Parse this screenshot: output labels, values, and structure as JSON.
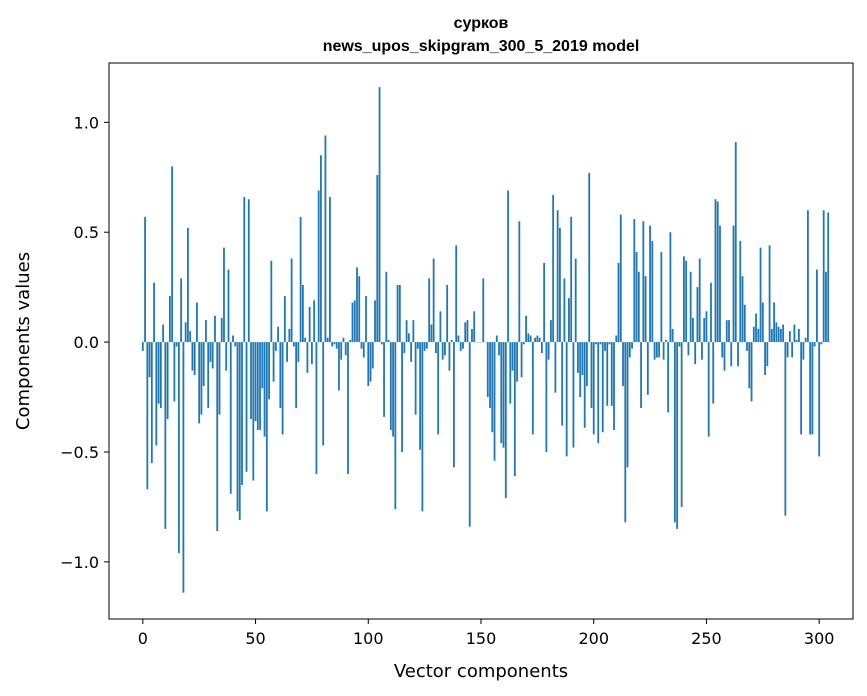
{
  "chart_data": {
    "type": "bar",
    "title": "сурков",
    "subtitle": "news_upos_skipgram_300_5_2019 model",
    "xlabel": "Vector components",
    "ylabel": "Components values",
    "xlim": [
      -15,
      315
    ],
    "ylim": [
      -1.26,
      1.27
    ],
    "xticks": [
      0,
      50,
      100,
      150,
      200,
      250,
      300
    ],
    "xtick_labels": [
      "0",
      "50",
      "100",
      "150",
      "200",
      "250",
      "300"
    ],
    "yticks": [
      -1.0,
      -0.5,
      0.0,
      0.5,
      1.0
    ],
    "ytick_labels": [
      "−1.0",
      "−0.5",
      "0.0",
      "0.5",
      "1.0"
    ],
    "grid": false,
    "bar_color": "#1f77b4",
    "x_start": 0,
    "values": [
      -0.04,
      0.57,
      -0.67,
      -0.16,
      -0.55,
      0.27,
      -0.47,
      -0.28,
      -0.3,
      0.08,
      -0.85,
      -0.35,
      0.21,
      0.8,
      -0.27,
      -0.02,
      -0.96,
      0.29,
      -1.14,
      0.09,
      0.52,
      0.05,
      -0.13,
      -0.15,
      0.18,
      -0.37,
      -0.33,
      -0.2,
      0.1,
      -0.3,
      -0.09,
      -0.12,
      0.12,
      -0.86,
      -0.33,
      0.11,
      0.43,
      -0.13,
      0.33,
      -0.69,
      0.03,
      -0.02,
      -0.77,
      -0.81,
      -0.65,
      0.66,
      -0.59,
      0.65,
      -0.35,
      -0.63,
      -0.36,
      -0.4,
      -0.4,
      -0.21,
      -0.43,
      -0.77,
      -0.26,
      0.37,
      -0.18,
      -0.04,
      0.07,
      -0.3,
      -0.42,
      0.21,
      -0.09,
      0.06,
      0.38,
      -0.02,
      -0.3,
      -0.09,
      0.57,
      0.26,
      0.02,
      -0.14,
      0.16,
      -0.1,
      0.19,
      -0.6,
      0.69,
      0.85,
      -0.47,
      0.94,
      0.02,
      0.66,
      -0.02,
      -0.01,
      -0.03,
      -0.22,
      -0.08,
      0.02,
      -0.06,
      -0.6,
      0.01,
      0.18,
      0.19,
      0.34,
      0.3,
      -0.03,
      -0.07,
      0.21,
      -0.2,
      -0.18,
      -0.12,
      0.19,
      0.76,
      1.16,
      -0.01,
      -0.34,
      0.32,
      0.01,
      -0.4,
      -0.43,
      -0.76,
      0.26,
      0.26,
      -0.5,
      -0.05,
      0.1,
      0.04,
      -0.09,
      0.1,
      -0.33,
      -0.03,
      -0.49,
      -0.77,
      -0.04,
      -0.03,
      0.29,
      0.08,
      0.38,
      -0.05,
      -0.42,
      0.14,
      -0.08,
      -0.06,
      0.26,
      -0.13,
      0.01,
      -0.57,
      0.44,
      0.03,
      -0.04,
      -0.03,
      0.09,
      0.1,
      -0.84,
      0.06,
      0.14,
      0.0,
      0.0,
      0.0,
      0.29,
      0.0,
      -0.25,
      -0.3,
      -0.41,
      -0.54,
      0.03,
      -0.06,
      -0.46,
      -0.48,
      -0.71,
      0.69,
      -0.28,
      -0.13,
      -0.61,
      -0.18,
      0.55,
      -0.16,
      -0.01,
      0.12,
      0.04,
      0.03,
      -0.42,
      0.02,
      0.03,
      0.02,
      -0.05,
      0.36,
      -0.5,
      -0.08,
      0.1,
      0.67,
      -0.23,
      0.6,
      0.52,
      -0.38,
      0.29,
      -0.52,
      0.2,
      0.57,
      -0.48,
      0.38,
      -0.14,
      -0.25,
      -0.15,
      -0.39,
      -0.2,
      0.77,
      -0.3,
      -0.42,
      -0.01,
      -0.46,
      -0.01,
      -0.41,
      -0.04,
      -0.29,
      -0.01,
      -0.29,
      -0.4,
      0.03,
      0.36,
      0.58,
      -0.2,
      -0.82,
      -0.57,
      -0.07,
      -0.03,
      0.56,
      0.41,
      0.32,
      -0.3,
      0.55,
      0.3,
      -0.24,
      0.53,
      0.46,
      -0.08,
      -0.07,
      -0.07,
      0.41,
      -0.08,
      0.01,
      -0.32,
      0.5,
      0.06,
      -0.82,
      -0.85,
      -0.02,
      -0.75,
      0.39,
      0.37,
      -0.06,
      0.32,
      0.11,
      -0.1,
      0.25,
      0.38,
      -0.08,
      0.11,
      0.14,
      -0.43,
      0.27,
      -0.28,
      0.65,
      0.64,
      0.53,
      -0.07,
      -0.13,
      0.1,
      0.1,
      -0.11,
      0.53,
      0.91,
      -0.11,
      0.46,
      0.3,
      0.17,
      -0.04,
      -0.21,
      -0.27,
      0.07,
      0.13,
      0.06,
      0.43,
      0.18,
      -0.15,
      -0.11,
      0.44,
      0.06,
      0.18,
      0.09,
      0.07,
      0.06,
      0.08,
      -0.79,
      -0.07,
      0.05,
      -0.07,
      0.08,
      0.01,
      0.06,
      -0.42,
      -0.08,
      0.02,
      0.6,
      -0.42,
      -0.42,
      -0.02,
      0.33,
      -0.52,
      -0.01,
      0.6,
      0.32,
      0.59,
      0.0
    ]
  }
}
